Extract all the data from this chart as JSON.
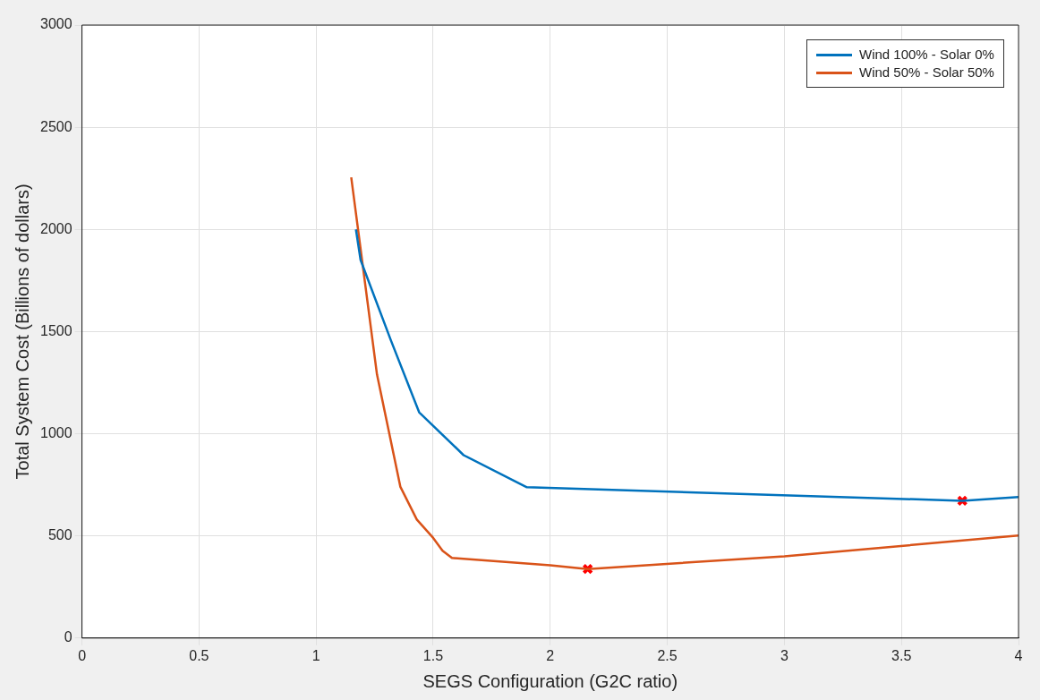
{
  "chart_data": {
    "type": "line",
    "xlabel": "SEGS Configuration (G2C ratio)",
    "ylabel": "Total System Cost (Billions of dollars)",
    "xlim": [
      0,
      4
    ],
    "xticks": [
      0,
      0.5,
      1,
      1.5,
      2,
      2.5,
      3,
      3.5,
      4
    ],
    "ylim": [
      0,
      3000
    ],
    "yticks": [
      0,
      500,
      1000,
      1500,
      2000,
      2500,
      3000
    ],
    "grid": true,
    "legend": "top right",
    "marker": "none",
    "line_style": "solid",
    "series": [
      {
        "name": "Wind 100% - Solar 0%",
        "color": "#0072bd",
        "x": [
          1.17,
          1.19,
          1.32,
          1.44,
          1.63,
          1.9,
          3.76,
          4
        ],
        "values": [
          2000,
          1850,
          1455,
          1105,
          895,
          738,
          672,
          690
        ]
      },
      {
        "name": "Wind 50% - Solar 50%",
        "color": "#d95319",
        "x": [
          1.15,
          1.26,
          1.36,
          1.43,
          1.5,
          1.54,
          1.58,
          2,
          2.16,
          3,
          4
        ],
        "values": [
          2255,
          1290,
          740,
          580,
          490,
          427,
          392,
          356,
          338,
          400,
          502
        ]
      },
      {
        "type": "scatter",
        "marker": "cross",
        "color": "#ff0000",
        "x": [
          3.76,
          2.16
        ],
        "values": [
          672,
          338
        ]
      }
    ]
  }
}
